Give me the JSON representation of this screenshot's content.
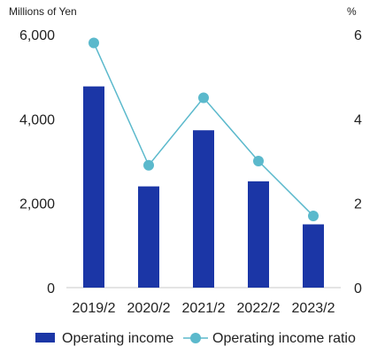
{
  "chart_data": {
    "type": "bar",
    "categories": [
      "2019/2",
      "2020/2",
      "2021/2",
      "2022/2",
      "2023/2"
    ],
    "series": [
      {
        "name": "Operating income",
        "type": "bar",
        "axis": "left",
        "values": [
          4770,
          2400,
          3730,
          2520,
          1500
        ],
        "color": "#1b36a6"
      },
      {
        "name": "Operating income ratio",
        "type": "line",
        "axis": "right",
        "values": [
          5.8,
          2.9,
          4.5,
          3.0,
          1.7
        ],
        "color": "#5bb9cc"
      }
    ],
    "left_axis": {
      "unit_label": "Millions of Yen",
      "ylim": [
        0,
        6000
      ],
      "ticks": [
        "0",
        "2,000",
        "4,000",
        "6,000"
      ]
    },
    "right_axis": {
      "unit_label": "%",
      "ylim": [
        0,
        6
      ],
      "ticks": [
        "0",
        "2",
        "4",
        "6"
      ]
    },
    "grid": false,
    "legend_position": "bottom"
  }
}
